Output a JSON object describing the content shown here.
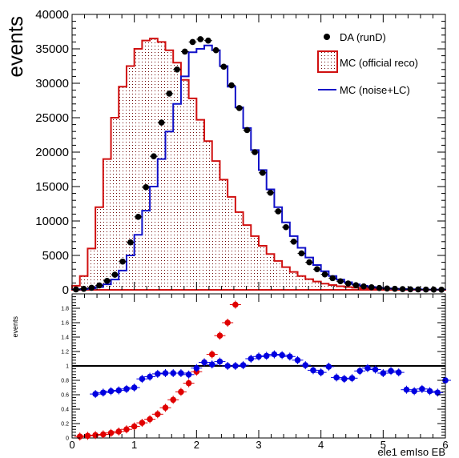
{
  "colors": {
    "data": "#000000",
    "official": "#d01010",
    "noise": "#1010c8",
    "ratio_official": "#e00000",
    "ratio_noise": "#0000e0",
    "frame": "#000000"
  },
  "chart_data": [
    {
      "type": "histogram",
      "panel": "main",
      "ylabel": "events",
      "xlim": [
        0,
        6
      ],
      "ylim": [
        0,
        40000
      ],
      "bin_width": 0.125,
      "yticks": [
        0,
        5000,
        10000,
        15000,
        20000,
        25000,
        30000,
        35000,
        40000
      ],
      "ytick_labels": [
        "0",
        "5000",
        "10000",
        "15000",
        "20000",
        "25000",
        "30000",
        "35000",
        "40000"
      ],
      "legend": {
        "position": "top-right",
        "entries": [
          {
            "key": "data",
            "label": "DA (runD)"
          },
          {
            "key": "official",
            "label": "MC (official reco)"
          },
          {
            "key": "noise",
            "label": "MC (noise+LC)"
          }
        ]
      },
      "series": [
        {
          "name": "MC (official reco)",
          "style": "filled-step",
          "values": [
            600,
            2000,
            6000,
            12000,
            19000,
            25000,
            29500,
            32500,
            35000,
            36200,
            36500,
            36000,
            34800,
            33000,
            30500,
            27800,
            24700,
            21600,
            18700,
            16000,
            13500,
            11300,
            9400,
            7800,
            6400,
            5200,
            4200,
            3300,
            2600,
            2000,
            1550,
            1200,
            900,
            700,
            520,
            400,
            300,
            230,
            170,
            130,
            95,
            70,
            50,
            40,
            30,
            20,
            15,
            10
          ]
        },
        {
          "name": "MC (noise+LC)",
          "style": "step",
          "values": [
            50,
            100,
            200,
            400,
            800,
            1500,
            2800,
            5000,
            8000,
            11500,
            15000,
            19000,
            23000,
            27000,
            31000,
            34500,
            35000,
            35500,
            34800,
            32500,
            29500,
            26500,
            23500,
            20300,
            17400,
            14600,
            12000,
            9800,
            7800,
            6100,
            4700,
            3600,
            2700,
            2000,
            1500,
            1100,
            800,
            580,
            420,
            300,
            220,
            160,
            120,
            90,
            70,
            50,
            40,
            30
          ]
        },
        {
          "name": "DA (runD)",
          "style": "points",
          "values": [
            60,
            150,
            300,
            650,
            1300,
            2200,
            4100,
            6900,
            10600,
            14900,
            19400,
            24300,
            28500,
            32000,
            34600,
            36000,
            36400,
            36200,
            34800,
            32400,
            29700,
            26400,
            23200,
            20000,
            17000,
            14100,
            11400,
            9100,
            7000,
            5300,
            4000,
            3000,
            2250,
            1700,
            1250,
            920,
            680,
            500,
            370,
            270,
            200,
            150,
            110,
            80,
            60,
            45,
            35,
            25
          ]
        }
      ]
    },
    {
      "type": "scatter",
      "panel": "ratio",
      "ylabel": "events",
      "xlabel": "ele1  emIso  EB",
      "xlim": [
        0,
        6
      ],
      "ylim": [
        0,
        2
      ],
      "yticks": [
        0,
        0.2,
        0.4,
        0.6,
        0.8,
        1,
        1.2,
        1.4,
        1.6,
        1.8
      ],
      "ytick_labels": [
        "0",
        "0.2",
        "0.4",
        "0.6",
        "0.8",
        "1",
        "1.2",
        "1.4",
        "1.6",
        "1.8"
      ],
      "xticks": [
        0,
        1,
        2,
        3,
        4,
        5,
        6
      ],
      "xtick_labels": [
        "0",
        "1",
        "2",
        "3",
        "4",
        "5",
        "6"
      ],
      "reference_line": 1,
      "series": [
        {
          "name": "DA / MC (official reco)",
          "x": [
            0.125,
            0.25,
            0.375,
            0.5,
            0.625,
            0.75,
            0.875,
            1.0,
            1.125,
            1.25,
            1.375,
            1.5,
            1.625,
            1.75,
            1.875,
            2.0,
            2.125,
            2.25,
            2.375,
            2.5,
            2.625
          ],
          "y": [
            0.02,
            0.03,
            0.04,
            0.05,
            0.07,
            0.09,
            0.12,
            0.16,
            0.21,
            0.26,
            0.33,
            0.42,
            0.53,
            0.64,
            0.76,
            0.92,
            1.05,
            1.16,
            1.42,
            1.6,
            1.85
          ]
        },
        {
          "name": "DA / MC (noise+LC)",
          "x": [
            0.375,
            0.5,
            0.625,
            0.75,
            0.875,
            1.0,
            1.125,
            1.25,
            1.375,
            1.5,
            1.625,
            1.75,
            1.875,
            2.0,
            2.125,
            2.25,
            2.375,
            2.5,
            2.625,
            2.75,
            2.875,
            3.0,
            3.125,
            3.25,
            3.375,
            3.5,
            3.625,
            3.75,
            3.875,
            4.0,
            4.125,
            4.25,
            4.375,
            4.5,
            4.625,
            4.75,
            4.875,
            5.0,
            5.125,
            5.25,
            5.375,
            5.5,
            5.625,
            5.75,
            5.875,
            6.0
          ],
          "y": [
            0.61,
            0.63,
            0.65,
            0.66,
            0.68,
            0.7,
            0.82,
            0.85,
            0.89,
            0.9,
            0.9,
            0.9,
            0.88,
            0.97,
            1.05,
            1.02,
            1.06,
            1.0,
            1.0,
            1.01,
            1.1,
            1.13,
            1.14,
            1.16,
            1.15,
            1.13,
            1.08,
            1.01,
            0.94,
            0.91,
            0.99,
            0.84,
            0.82,
            0.83,
            0.93,
            0.97,
            0.95,
            0.9,
            0.93,
            0.91,
            0.67,
            0.65,
            0.68,
            0.65,
            0.63,
            0.8
          ]
        }
      ]
    }
  ]
}
